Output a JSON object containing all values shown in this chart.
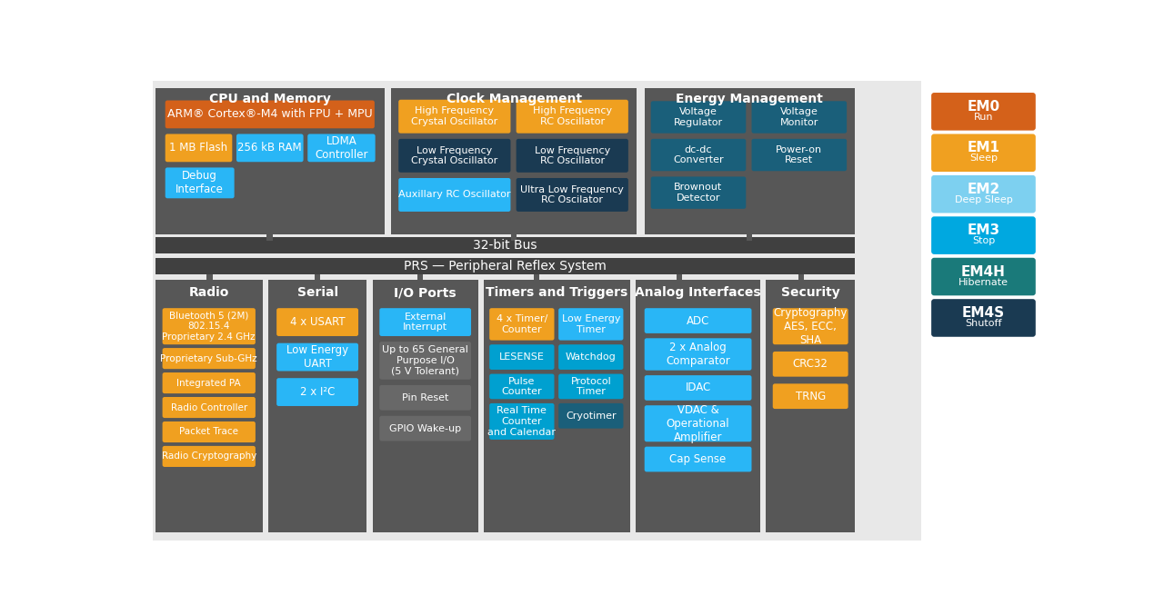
{
  "bg_main": "#e8e8e8",
  "bg_white": "#ffffff",
  "panel_dark": "#575757",
  "bus_dark": "#404040",
  "orange": "#d4611a",
  "amber": "#f0a020",
  "cyan_bright": "#29b6f6",
  "cyan_mid": "#00a0d0",
  "teal_dark": "#1a5f7a",
  "navy": "#1a3a52",
  "em_modes": [
    {
      "label": "EM0",
      "sub": "Run",
      "color": "#d4611a"
    },
    {
      "label": "EM1",
      "sub": "Sleep",
      "color": "#f0a020"
    },
    {
      "label": "EM2",
      "sub": "Deep Sleep",
      "color": "#7dd0f0"
    },
    {
      "label": "EM3",
      "sub": "Stop",
      "color": "#00a8e0"
    },
    {
      "label": "EM4H",
      "sub": "Hibernate",
      "color": "#1a7a7a"
    },
    {
      "label": "EM4S",
      "sub": "Shutoff",
      "color": "#1a3a52"
    }
  ]
}
